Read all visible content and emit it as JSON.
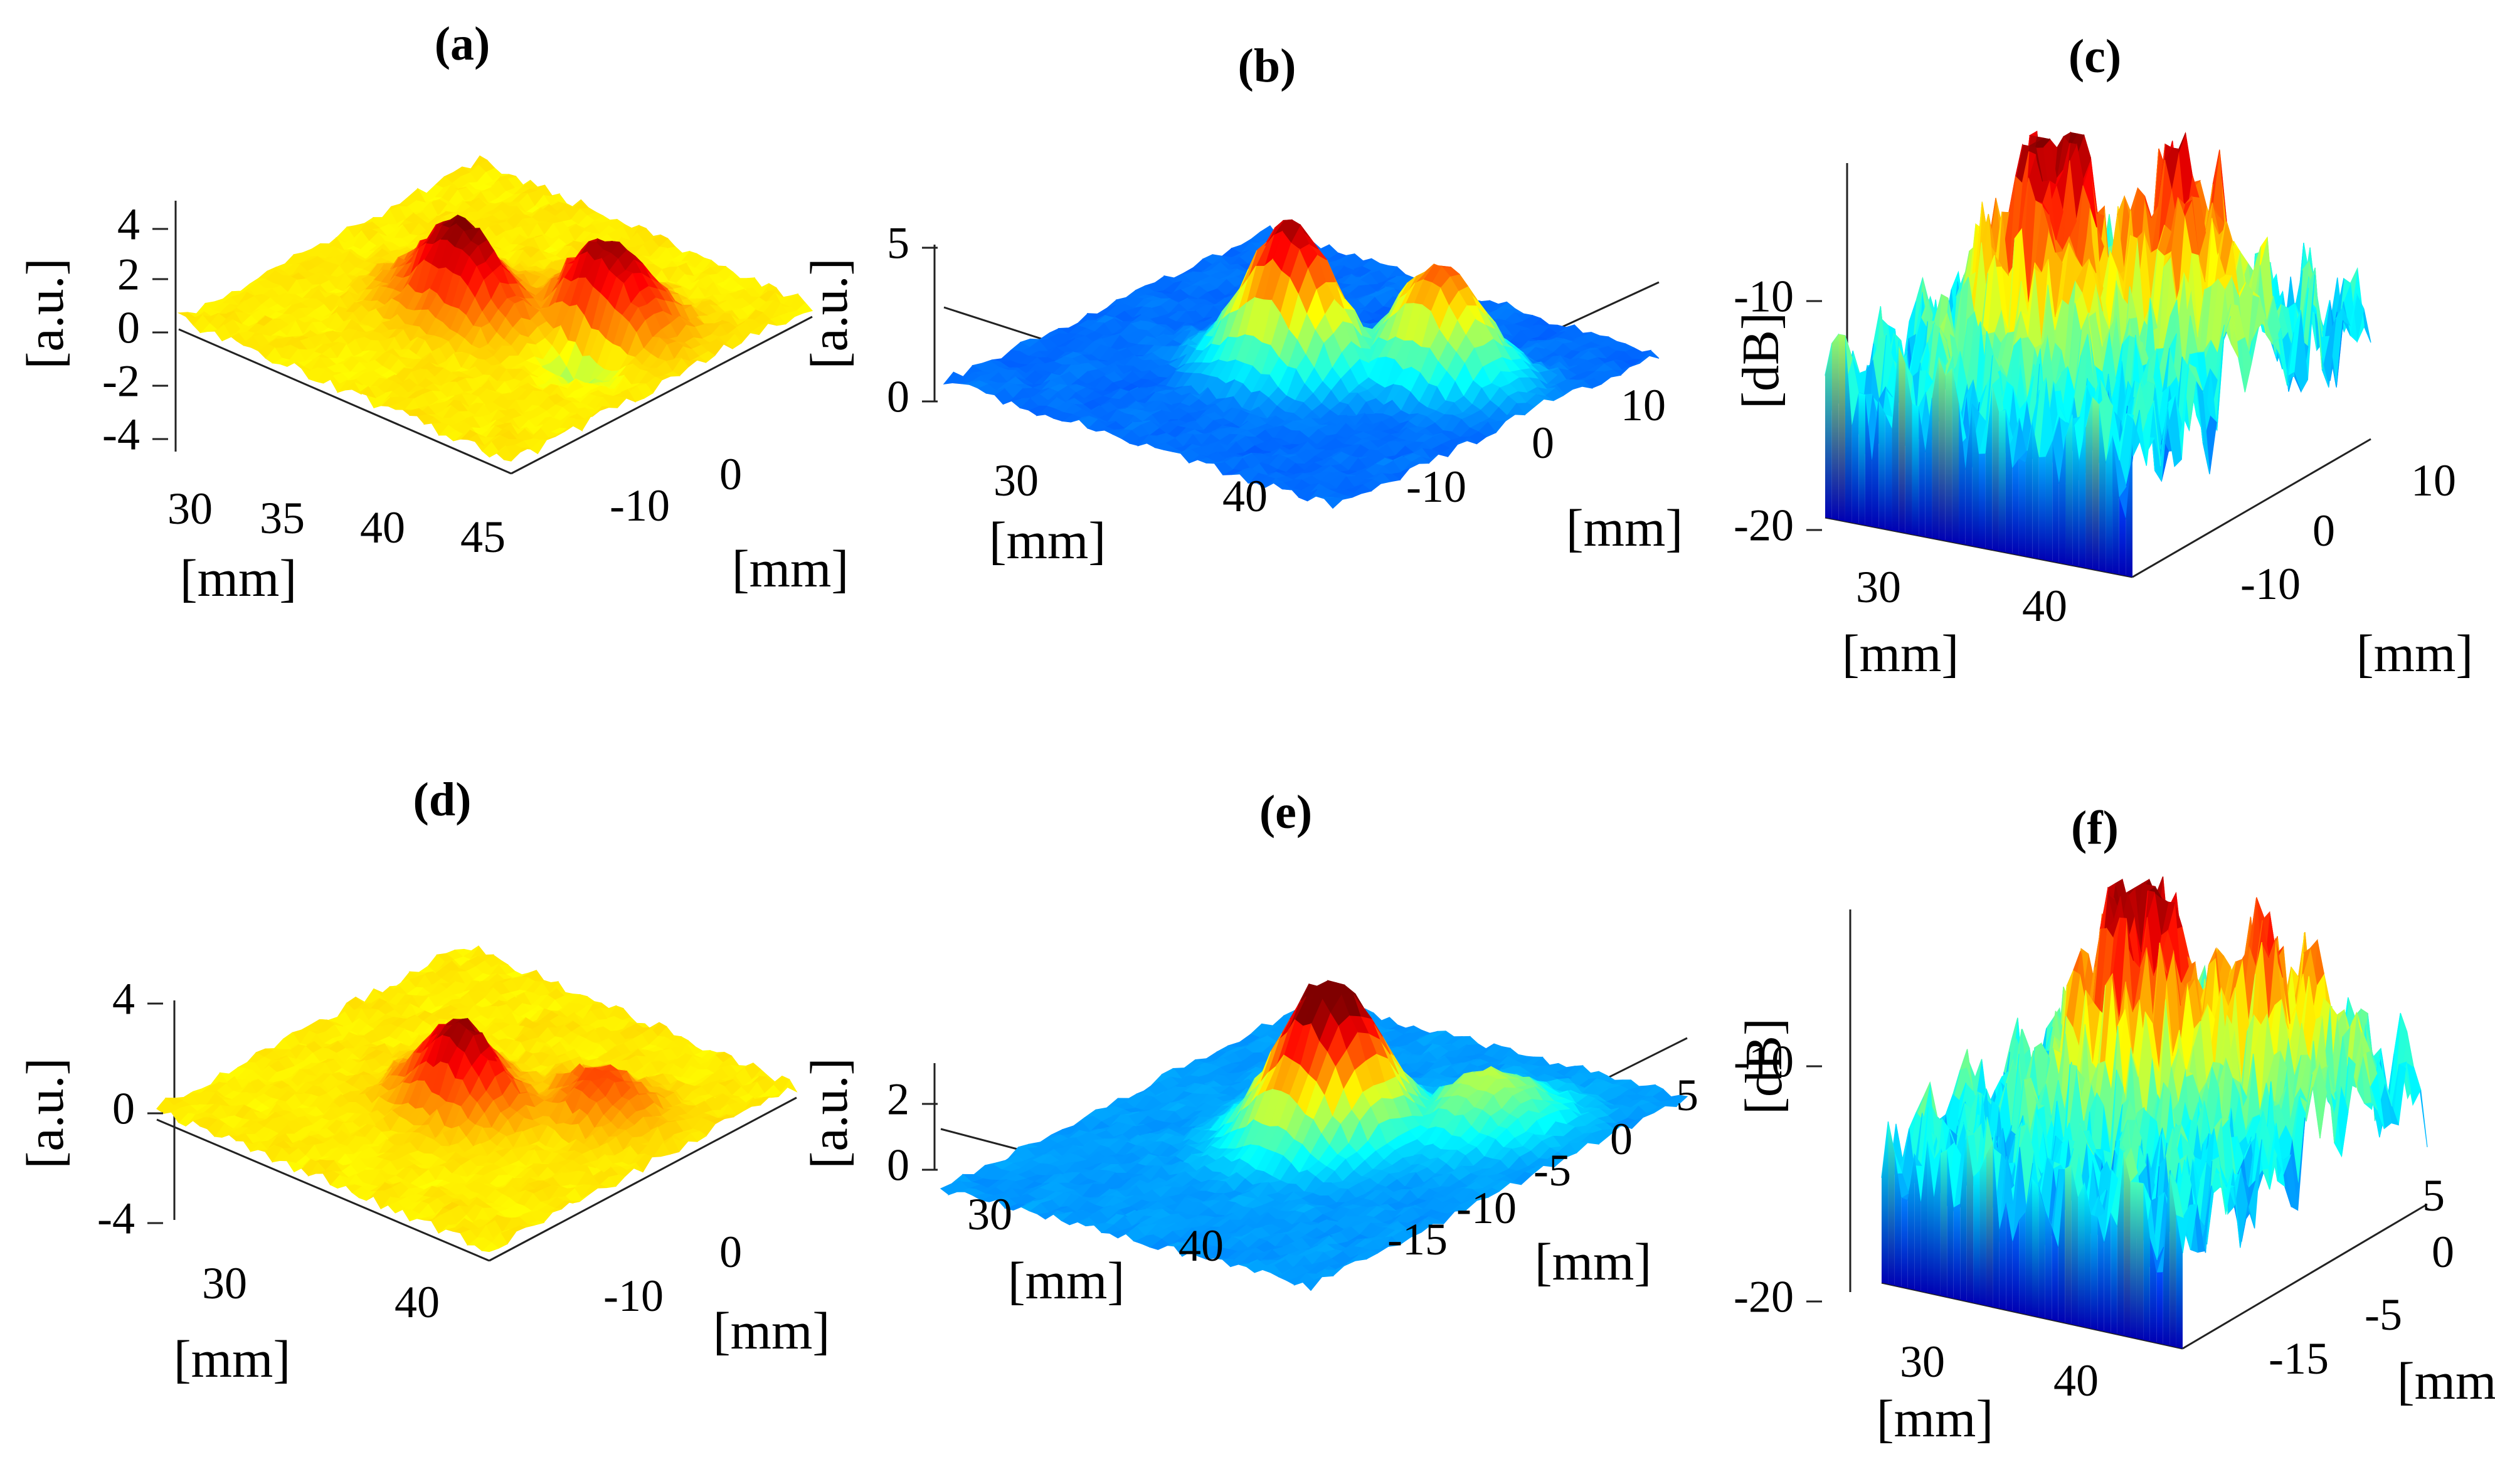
{
  "figure": {
    "colormap": [
      "#00007f",
      "#0000ff",
      "#007fff",
      "#00ffff",
      "#7fff7f",
      "#ffff00",
      "#ff7f00",
      "#ff0000",
      "#7f0000"
    ],
    "panels": [
      {
        "id": "a",
        "title": "(a)",
        "zlabel": "[a.u.]",
        "xlabel": "[mm]",
        "ylabel": "[mm]"
      },
      {
        "id": "b",
        "title": "(b)",
        "zlabel": "[a.u.]",
        "xlabel": "[mm]",
        "ylabel": "[mm]"
      },
      {
        "id": "c",
        "title": "(c)",
        "zlabel": "[dB]",
        "xlabel": "[mm]",
        "ylabel": "[mm]"
      },
      {
        "id": "d",
        "title": "(d)",
        "zlabel": "[a.u.]",
        "xlabel": "[mm]",
        "ylabel": "[mm]"
      },
      {
        "id": "e",
        "title": "(e)",
        "zlabel": "[a.u.]",
        "xlabel": "[mm]",
        "ylabel": "[mm]"
      },
      {
        "id": "f",
        "title": "(f)",
        "zlabel": "[dB]",
        "xlabel": "[mm]",
        "ylabel": "[mm]"
      }
    ]
  },
  "chart_data": [
    {
      "panel": "a",
      "type": "surface",
      "title": "(a)",
      "zlabel": "[a.u.]",
      "xlabel": "[mm]",
      "ylabel": "[mm]",
      "x_ticks": [
        30,
        35,
        40,
        45
      ],
      "y_ticks": [
        -10,
        0
      ],
      "z_ticks": [
        4,
        2,
        0,
        -2,
        -4
      ],
      "zlim": [
        -4,
        4
      ],
      "xlim": [
        27,
        45
      ],
      "ylim": [
        -20,
        12
      ],
      "peaks": [
        {
          "x": 35,
          "y": -5,
          "z": 3.8
        },
        {
          "x": 40,
          "y": 0,
          "z": 3.2
        }
      ],
      "dips": [
        {
          "x": 36,
          "y": -3,
          "z": -0.8
        },
        {
          "x": 41,
          "y": -5,
          "z": -1.2
        }
      ],
      "baseline": 0.4
    },
    {
      "panel": "b",
      "type": "surface",
      "title": "(b)",
      "zlabel": "[a.u.]",
      "xlabel": "[mm]",
      "ylabel": "[mm]",
      "x_ticks": [
        30,
        40
      ],
      "y_ticks": [
        -10,
        0,
        10
      ],
      "z_ticks": [
        5,
        0
      ],
      "zlim": [
        0,
        5
      ],
      "xlim": [
        25,
        45
      ],
      "ylim": [
        -20,
        12
      ],
      "peaks": [
        {
          "x": 35,
          "y": -5,
          "z": 4.5
        },
        {
          "x": 40,
          "y": 0,
          "z": 3.6
        }
      ],
      "baseline": 0.6
    },
    {
      "panel": "c",
      "type": "surface",
      "title": "(c)",
      "zlabel": "[dB]",
      "xlabel": "[mm]",
      "ylabel": "[mm]",
      "x_ticks": [
        30,
        40
      ],
      "y_ticks": [
        -10,
        0,
        10
      ],
      "z_ticks": [
        -10,
        -20
      ],
      "zlim": [
        -20,
        -3
      ],
      "xlim": [
        27,
        45
      ],
      "ylim": [
        -15,
        12
      ],
      "peaks": [
        {
          "x": 35,
          "y": -5,
          "z": -3
        },
        {
          "x": 40,
          "y": 0,
          "z": -5
        }
      ],
      "baseline": -14
    },
    {
      "panel": "d",
      "type": "surface",
      "title": "(d)",
      "zlabel": "[a.u.]",
      "xlabel": "[mm]",
      "ylabel": "[mm]",
      "x_ticks": [
        30,
        40
      ],
      "y_ticks": [
        -10,
        0
      ],
      "z_ticks": [
        4,
        0,
        -4
      ],
      "zlim": [
        -4,
        4
      ],
      "xlim": [
        25,
        45
      ],
      "ylim": [
        -20,
        12
      ],
      "peaks": [
        {
          "x": 35,
          "y": -5,
          "z": 3.6
        },
        {
          "x": 40,
          "y": 0,
          "z": 1.8
        }
      ],
      "dips": [
        {
          "x": 36,
          "y": -3,
          "z": -0.8
        }
      ],
      "baseline": 0.4
    },
    {
      "panel": "e",
      "type": "surface",
      "title": "(e)",
      "zlabel": "[a.u.]",
      "xlabel": "[mm]",
      "ylabel": "[mm]",
      "x_ticks": [
        30,
        40
      ],
      "y_ticks": [
        -15,
        -10,
        -5,
        0,
        5
      ],
      "z_ticks": [
        2,
        0
      ],
      "zlim": [
        0,
        3
      ],
      "xlim": [
        25,
        45
      ],
      "ylim": [
        -20,
        8
      ],
      "peaks": [
        {
          "x": 35,
          "y": -5,
          "z": 3.2
        },
        {
          "x": 40,
          "y": 0,
          "z": 1.4
        }
      ],
      "baseline": 0.5
    },
    {
      "panel": "f",
      "type": "surface",
      "title": "(f)",
      "zlabel": "[dB]",
      "xlabel": "[mm]",
      "ylabel": "[mm]",
      "x_ticks": [
        30,
        40
      ],
      "y_ticks": [
        -15,
        -5,
        0,
        5
      ],
      "z_ticks": [
        -10,
        -20
      ],
      "zlim": [
        -20,
        -3
      ],
      "xlim": [
        27,
        45
      ],
      "ylim": [
        -18,
        8
      ],
      "peaks": [
        {
          "x": 35,
          "y": -5,
          "z": -3
        },
        {
          "x": 40,
          "y": 0,
          "z": -6.5
        }
      ],
      "baseline": -14
    }
  ]
}
